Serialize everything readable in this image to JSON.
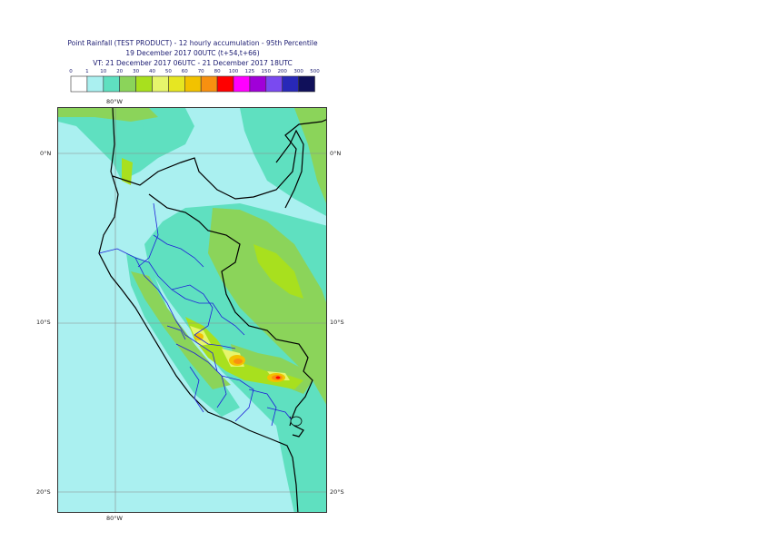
{
  "title": {
    "line1": "Point Rainfall (TEST PRODUCT) - 12 hourly accumulation - 95th Percentile",
    "line2": "19 December 2017 00UTC (t+54,t+66)",
    "line3": "VT: 21 December 2017 06UTC - 21 December 2017 18UTC"
  },
  "legend": {
    "thresholds": [
      "0",
      "1",
      "10",
      "20",
      "30",
      "40",
      "50",
      "60",
      "70",
      "80",
      "100",
      "125",
      "150",
      "200",
      "300",
      "500"
    ],
    "colors": [
      "#ffffff",
      "#aaf0f0",
      "#5fe0c0",
      "#8bd45a",
      "#a8e01e",
      "#e6f56c",
      "#e6e622",
      "#f2c200",
      "#f89010",
      "#ff0000",
      "#ff00ff",
      "#a000d8",
      "#7a4af0",
      "#2828b8",
      "#10105a"
    ]
  },
  "axes": {
    "top_lon": "80°W",
    "bottom_lon": "80°W",
    "lat_labels": [
      "0°N",
      "10°S",
      "20°S"
    ]
  },
  "colors": {
    "coast": "#000000",
    "admin_borders": "#1f1fd8",
    "frame": "#333333"
  }
}
